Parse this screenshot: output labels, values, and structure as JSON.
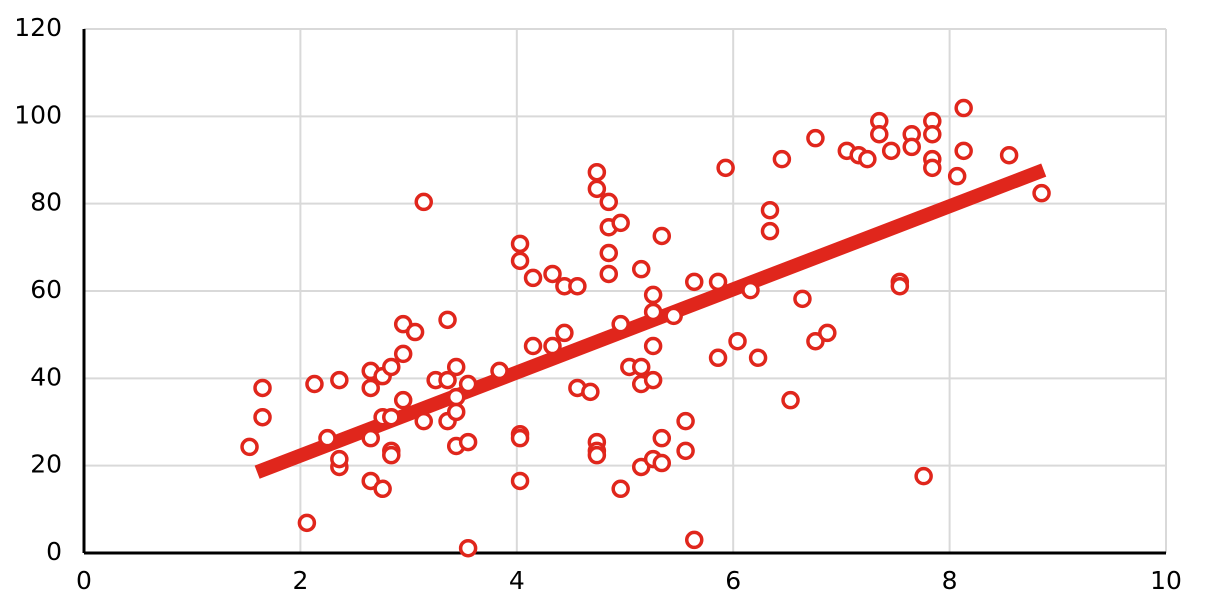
{
  "chart_data": {
    "type": "scatter",
    "series": [
      {
        "color": "#e0261c",
        "x": [
          1.53,
          1.65,
          1.65,
          2.06,
          2.13,
          2.25,
          2.36,
          2.36,
          2.36,
          2.65,
          2.65,
          2.65,
          2.65,
          2.76,
          2.76,
          2.76,
          2.84,
          2.84,
          2.84,
          2.84,
          2.95,
          2.95,
          2.95,
          3.06,
          3.14,
          3.14,
          3.25,
          3.36,
          3.36,
          3.36,
          3.44,
          3.44,
          3.44,
          3.44,
          3.55,
          3.55,
          3.55,
          3.84,
          4.03,
          4.03,
          4.03,
          4.03,
          4.03,
          4.15,
          4.15,
          4.33,
          4.33,
          4.44,
          4.44,
          4.56,
          4.56,
          4.68,
          4.74,
          4.74,
          4.74,
          4.74,
          4.74,
          4.85,
          4.85,
          4.85,
          4.85,
          4.96,
          4.96,
          4.96,
          5.04,
          5.15,
          5.15,
          5.15,
          5.15,
          5.26,
          5.26,
          5.26,
          5.26,
          5.26,
          5.34,
          5.34,
          5.34,
          5.45,
          5.56,
          5.56,
          5.64,
          5.64,
          5.86,
          5.86,
          5.93,
          6.04,
          6.16,
          6.23,
          6.34,
          6.34,
          6.45,
          6.53,
          6.64,
          6.76,
          6.76,
          6.87,
          7.05,
          7.16,
          7.24,
          7.35,
          7.35,
          7.46,
          7.54,
          7.54,
          7.65,
          7.65,
          7.76,
          7.84,
          7.84,
          7.84,
          7.84,
          8.07,
          8.13,
          8.13,
          8.55,
          8.85
        ],
        "values": [
          24.3,
          37.8,
          31.1,
          6.9,
          38.7,
          26.3,
          39.6,
          19.7,
          21.5,
          41.7,
          37.8,
          26.3,
          16.5,
          40.5,
          31.1,
          14.7,
          42.6,
          31.1,
          23.4,
          22.4,
          52.4,
          45.6,
          35.0,
          50.6,
          80.4,
          30.2,
          39.6,
          53.4,
          39.6,
          30.2,
          42.6,
          35.7,
          32.3,
          24.5,
          38.7,
          25.4,
          1.1,
          41.7,
          70.8,
          66.9,
          27.2,
          26.3,
          16.5,
          63.0,
          47.4,
          63.9,
          47.4,
          61.1,
          50.4,
          61.1,
          37.8,
          36.9,
          87.2,
          83.4,
          25.4,
          23.4,
          22.4,
          80.4,
          74.6,
          68.7,
          63.9,
          75.6,
          52.4,
          14.7,
          42.6,
          65.0,
          42.6,
          38.7,
          19.7,
          59.1,
          55.2,
          47.4,
          39.6,
          21.5,
          72.6,
          26.3,
          20.6,
          54.3,
          30.2,
          23.4,
          62.1,
          3.0,
          62.1,
          44.7,
          88.2,
          48.5,
          60.2,
          44.7,
          78.5,
          73.7,
          90.2,
          35.0,
          58.2,
          95.0,
          48.5,
          50.4,
          92.1,
          91.1,
          90.2,
          98.9,
          95.9,
          92.1,
          62.1,
          61.1,
          95.9,
          93.0,
          17.6,
          98.9,
          95.9,
          90.2,
          88.2,
          86.3,
          101.9,
          92.1,
          91.1,
          82.4
        ]
      }
    ],
    "trendline": {
      "color": "#e0261c",
      "x": [
        1.6,
        8.87
      ],
      "values": [
        18.5,
        87.7
      ]
    },
    "xlim": [
      0,
      10
    ],
    "xticks": [
      0,
      2,
      4,
      6,
      8,
      10
    ],
    "ylim": [
      0,
      120
    ],
    "yticks": [
      0,
      20,
      40,
      60,
      80,
      100,
      120
    ],
    "grid": true
  }
}
